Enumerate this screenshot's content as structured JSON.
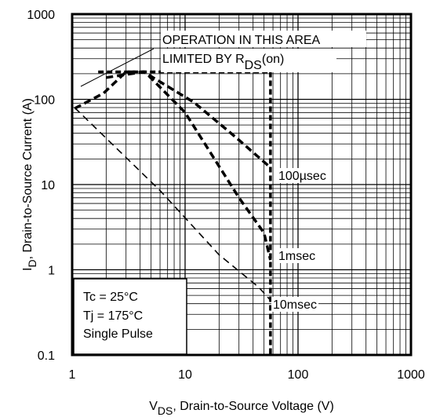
{
  "chart_data": {
    "type": "line",
    "xscale": "log",
    "yscale": "log",
    "xlim": [
      1,
      1000
    ],
    "ylim": [
      0.1,
      1000
    ],
    "grid": true,
    "x_tick_labels": [
      "1",
      "10",
      "100",
      "1000"
    ],
    "y_tick_labels": [
      "0.1",
      "1",
      "10",
      "100",
      "1000"
    ],
    "xlabel": {
      "main": "V",
      "sub": "DS",
      "rest": ", Drain-to-Source Voltage (V)"
    },
    "ylabel": {
      "main": "I",
      "sub": "D",
      "rest": ",  Drain-to-Source Current (A)"
    },
    "annotation": {
      "line1": "OPERATION IN THIS AREA",
      "line2": "LIMITED BY R",
      "line2_sub": "DS",
      "line2_suffix": "(on)"
    },
    "conditions": [
      "Tc = 25°C",
      "Tj = 175°C",
      "Single Pulse"
    ],
    "series": [
      {
        "name": "100µsec",
        "points": [
          [
            2.0,
            180
          ],
          [
            4.3,
            210
          ],
          [
            12,
            92
          ],
          [
            28,
            36
          ],
          [
            55,
            16.5
          ]
        ]
      },
      {
        "name": "1msec",
        "points": [
          [
            1.05,
            78
          ],
          [
            1.9,
            118
          ],
          [
            3.0,
            210
          ],
          [
            4.4,
            210
          ],
          [
            10,
            70
          ],
          [
            30,
            7
          ],
          [
            50,
            2.7
          ],
          [
            57,
            1.3
          ]
        ]
      },
      {
        "name": "10msec",
        "points": [
          [
            1.05,
            80
          ],
          [
            6,
            8.5
          ],
          [
            20,
            1.5
          ],
          [
            45,
            0.62
          ],
          [
            57,
            0.44
          ]
        ]
      }
    ],
    "limit_lines": {
      "current_limit_A": 210,
      "voltage_limit_V": 57
    }
  }
}
